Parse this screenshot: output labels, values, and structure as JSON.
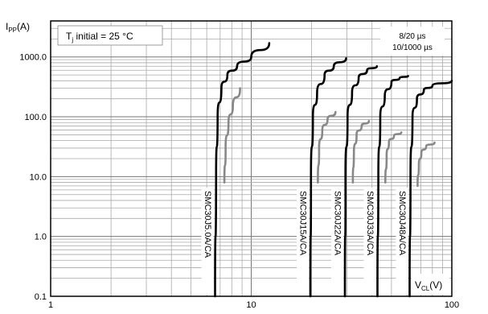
{
  "chart_data": {
    "type": "line",
    "title": "",
    "xlabel": "V",
    "xlabel_sub": "CL",
    "xlabel_unit": "(V)",
    "ylabel": "I",
    "ylabel_sub": "PP",
    "ylabel_unit": "(A)",
    "x_scale": "log",
    "y_scale": "log",
    "xlim": [
      1,
      100
    ],
    "ylim": [
      0.1,
      4000
    ],
    "x_ticks": [
      1,
      10,
      100
    ],
    "x_tick_labels": [
      "1",
      "10",
      "100"
    ],
    "y_ticks": [
      0.1,
      1,
      10,
      100,
      1000
    ],
    "y_tick_labels": [
      "0.1",
      "1.0",
      "10.0",
      "100.0",
      "1000.0"
    ],
    "grid": true,
    "annotation_left": {
      "main": "T",
      "sub": "j",
      "rest": " initial = 25 °C"
    },
    "annotation_right": [
      "8/20 µs",
      "10/1000 µs"
    ],
    "series": [
      {
        "device": "SMC30J5.0A/CA",
        "color": "#000000",
        "x": [
          6.6,
          6.68,
          6.8,
          7.1,
          7.6,
          8.5,
          10,
          12.3
        ],
        "y": [
          0.1,
          10,
          100,
          300,
          500,
          700,
          1000,
          1700
        ]
      },
      {
        "device": "SMC30J5.0A/CA",
        "color": "#888888",
        "x": [
          7.35,
          7.45,
          7.7,
          8.1,
          8.8
        ],
        "y": [
          8,
          30,
          80,
          150,
          300
        ]
      },
      {
        "device": "SMC30J15A/CA",
        "color": "#000000",
        "x": [
          19.7,
          19.85,
          20.3,
          21.3,
          23.2,
          25.8,
          29.7
        ],
        "y": [
          0.1,
          10,
          100,
          250,
          500,
          700,
          950
        ]
      },
      {
        "device": "SMC30J15A/CA",
        "color": "#888888",
        "x": [
          21.5,
          21.8,
          22.6,
          24,
          26.3
        ],
        "y": [
          8,
          30,
          60,
          90,
          120
        ]
      },
      {
        "device": "SMC30J22A/CA",
        "color": "#000000",
        "x": [
          29.3,
          29.5,
          30.2,
          31.8,
          34.3,
          37.8,
          42.3
        ],
        "y": [
          0.1,
          10,
          100,
          250,
          450,
          600,
          700
        ]
      },
      {
        "device": "SMC30J22A/CA",
        "color": "#888888",
        "x": [
          32.1,
          32.5,
          33.5,
          35.5,
          38.6
        ],
        "y": [
          8,
          25,
          50,
          70,
          85
        ]
      },
      {
        "device": "SMC30J33A/CA",
        "color": "#000000",
        "x": [
          42.6,
          43,
          44,
          46.3,
          50,
          55,
          60.5
        ],
        "y": [
          0.1,
          10,
          100,
          220,
          380,
          450,
          480
        ]
      },
      {
        "device": "SMC30J33A/CA",
        "color": "#888888",
        "x": [
          46.6,
          47.3,
          48.6,
          51.5,
          56
        ],
        "y": [
          8,
          22,
          38,
          48,
          55
        ]
      },
      {
        "device": "SMC30J48A/CA",
        "color": "#000000",
        "x": [
          61.6,
          62.2,
          63.7,
          67,
          72.5,
          80,
          100
        ],
        "y": [
          0.1,
          10,
          100,
          200,
          280,
          330,
          400
        ]
      },
      {
        "device": "SMC30J48A/CA",
        "color": "#888888",
        "x": [
          67.5,
          68.5,
          70.5,
          74.5,
          82
        ],
        "y": [
          7,
          16,
          25,
          32,
          37
        ]
      }
    ]
  }
}
